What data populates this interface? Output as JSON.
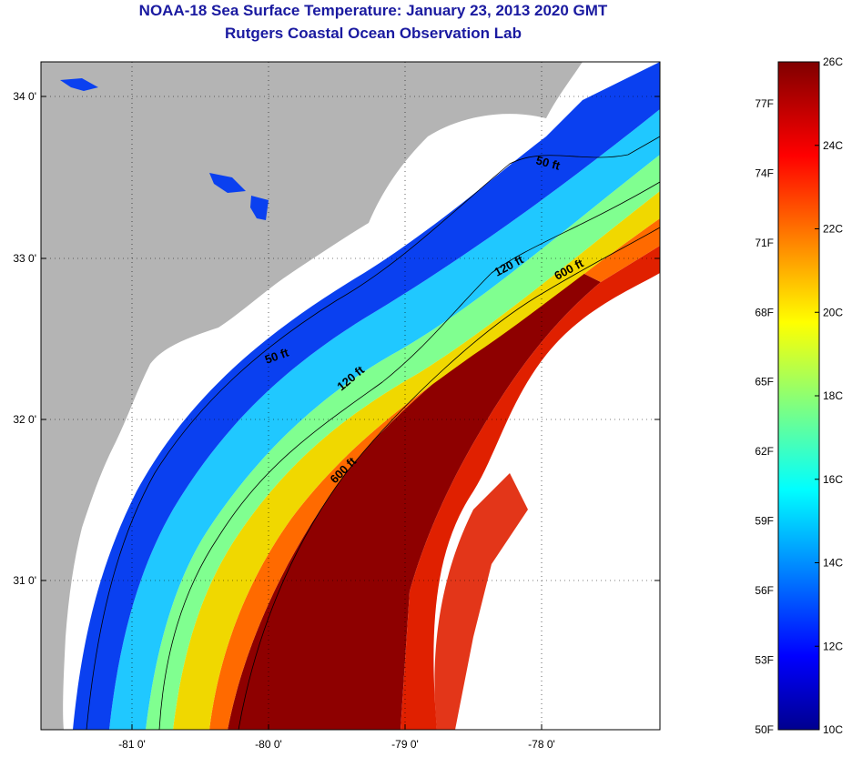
{
  "header": {
    "title": "NOAA-18 Sea Surface Temperature:  January 23, 2013 2020 GMT",
    "subtitle": "Rutgers Coastal Ocean Observation Lab"
  },
  "map": {
    "lon_ticks": [
      "-81 0'",
      "-80 0'",
      "-79 0'",
      "-78 0'"
    ],
    "lat_ticks": [
      "34 0'",
      "33 0'",
      "32 0'",
      "31 0'"
    ],
    "contours": [
      {
        "label": "50 ft"
      },
      {
        "label": "50 ft"
      },
      {
        "label": "120 ft"
      },
      {
        "label": "120 ft"
      },
      {
        "label": "600 ft"
      },
      {
        "label": "600 ft"
      }
    ],
    "colors": {
      "land": "#b4b4b4",
      "cloud": "#ffffff"
    }
  },
  "colorbar": {
    "celsius_labels": [
      "26C",
      "24C",
      "22C",
      "20C",
      "18C",
      "16C",
      "14C",
      "12C",
      "10C"
    ],
    "fahrenheit_labels": [
      "77F",
      "74F",
      "71F",
      "68F",
      "65F",
      "62F",
      "59F",
      "56F",
      "53F",
      "50F"
    ],
    "colormap": "jet"
  }
}
